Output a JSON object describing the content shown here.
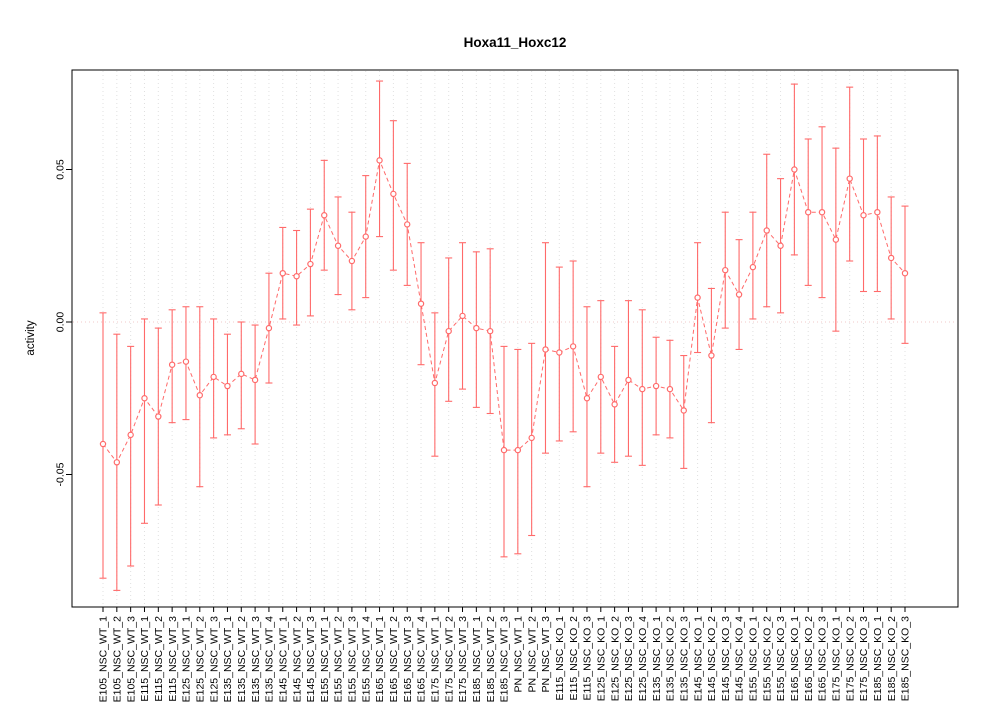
{
  "figure": {
    "title": "Hoxa11_Hoxc12",
    "ylabel": "activity"
  },
  "colors": {
    "accent": "#ff6a6a",
    "grid": "#e0e0e0",
    "zero_line": "#f2c9c9",
    "axis": "#000000",
    "background": "#ffffff"
  },
  "chart_data": {
    "type": "scatter",
    "title": "Hoxa11_Hoxc12",
    "xlabel": "",
    "ylabel": "activity",
    "ylim": [
      -0.093,
      0.083
    ],
    "yticks": [
      -0.05,
      0,
      0.05
    ],
    "grid": "vertical dotted gridline per category; dotted horizontal line at y=0",
    "legend": "none",
    "point_style": "open-circle",
    "line_style": "dashed",
    "error_bars": "capped vertical bars",
    "categories": [
      "E105_NSC_WT_1",
      "E105_NSC_WT_2",
      "E105_NSC_WT_3",
      "E115_NSC_WT_1",
      "E115_NSC_WT_2",
      "E115_NSC_WT_3",
      "E125_NSC_WT_1",
      "E125_NSC_WT_2",
      "E125_NSC_WT_3",
      "E135_NSC_WT_1",
      "E135_NSC_WT_2",
      "E135_NSC_WT_3",
      "E135_NSC_WT_4",
      "E145_NSC_WT_1",
      "E145_NSC_WT_2",
      "E145_NSC_WT_3",
      "E155_NSC_WT_1",
      "E155_NSC_WT_2",
      "E155_NSC_WT_3",
      "E155_NSC_WT_4",
      "E165_NSC_WT_1",
      "E165_NSC_WT_2",
      "E165_NSC_WT_3",
      "E165_NSC_WT_4",
      "E175_NSC_WT_1",
      "E175_NSC_WT_2",
      "E175_NSC_WT_3",
      "E185_NSC_WT_1",
      "E185_NSC_WT_2",
      "E185_NSC_WT_3",
      "PN_NSC_WT_1",
      "PN_NSC_WT_2",
      "PN_NSC_WT_3",
      "E115_NSC_KO_1",
      "E115_NSC_KO_2",
      "E115_NSC_KO_3",
      "E125_NSC_KO_1",
      "E125_NSC_KO_2",
      "E125_NSC_KO_3",
      "E125_NSC_KO_4",
      "E135_NSC_KO_1",
      "E135_NSC_KO_2",
      "E135_NSC_KO_3",
      "E145_NSC_KO_1",
      "E145_NSC_KO_2",
      "E145_NSC_KO_3",
      "E145_NSC_KO_4",
      "E155_NSC_KO_1",
      "E155_NSC_KO_2",
      "E155_NSC_KO_3",
      "E165_NSC_KO_1",
      "E165_NSC_KO_2",
      "E165_NSC_KO_3",
      "E175_NSC_KO_1",
      "E175_NSC_KO_2",
      "E175_NSC_KO_3",
      "E185_NSC_KO_1",
      "E185_NSC_KO_2",
      "E185_NSC_KO_3"
    ],
    "series": [
      {
        "name": "activity",
        "values": [
          -0.04,
          -0.046,
          -0.037,
          -0.025,
          -0.031,
          -0.014,
          -0.013,
          -0.024,
          -0.018,
          -0.021,
          -0.017,
          -0.019,
          -0.002,
          0.016,
          0.015,
          0.019,
          0.035,
          0.025,
          0.02,
          0.028,
          0.053,
          0.042,
          0.032,
          0.006,
          -0.02,
          -0.003,
          0.002,
          -0.002,
          -0.003,
          -0.042,
          -0.042,
          -0.038,
          -0.009,
          -0.01,
          -0.008,
          -0.025,
          -0.018,
          -0.027,
          -0.019,
          -0.022,
          -0.021,
          -0.022,
          -0.029,
          0.008,
          -0.011,
          0.017,
          0.009,
          0.018,
          0.03,
          0.025,
          0.05,
          0.036,
          0.036,
          0.027,
          0.047,
          0.035,
          0.036,
          0.021,
          0.016
        ],
        "error_low": [
          -0.084,
          -0.088,
          -0.08,
          -0.066,
          -0.06,
          -0.033,
          -0.032,
          -0.054,
          -0.038,
          -0.037,
          -0.035,
          -0.04,
          -0.02,
          0.001,
          -0.001,
          0.002,
          0.017,
          0.009,
          0.004,
          0.008,
          0.028,
          0.017,
          0.012,
          -0.014,
          -0.044,
          -0.026,
          -0.022,
          -0.028,
          -0.03,
          -0.077,
          -0.076,
          -0.07,
          -0.043,
          -0.039,
          -0.036,
          -0.054,
          -0.043,
          -0.046,
          -0.044,
          -0.047,
          -0.037,
          -0.038,
          -0.048,
          -0.01,
          -0.033,
          -0.002,
          -0.009,
          0.001,
          0.005,
          0.003,
          0.022,
          0.012,
          0.008,
          -0.003,
          0.02,
          0.01,
          0.01,
          0.001,
          -0.007
        ],
        "error_high": [
          0.003,
          -0.004,
          -0.008,
          0.001,
          -0.002,
          0.004,
          0.005,
          0.005,
          0.001,
          -0.004,
          0.0,
          -0.001,
          0.016,
          0.031,
          0.03,
          0.037,
          0.053,
          0.041,
          0.036,
          0.048,
          0.079,
          0.066,
          0.052,
          0.026,
          0.003,
          0.021,
          0.026,
          0.023,
          0.024,
          -0.008,
          -0.009,
          -0.007,
          0.026,
          0.018,
          0.02,
          0.005,
          0.007,
          -0.008,
          0.007,
          0.004,
          -0.005,
          -0.006,
          -0.011,
          0.026,
          0.011,
          0.036,
          0.027,
          0.036,
          0.055,
          0.047,
          0.078,
          0.06,
          0.064,
          0.057,
          0.077,
          0.06,
          0.061,
          0.041,
          0.038
        ]
      }
    ]
  }
}
